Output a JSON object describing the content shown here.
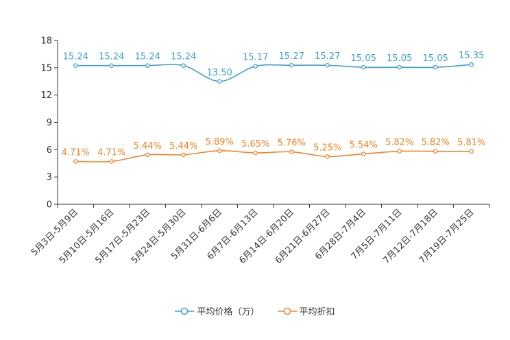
{
  "chart_data": {
    "type": "line",
    "categories": [
      "5月3日-5月9日",
      "5月10日-5月16日",
      "5月17日-5月23日",
      "5月24日-5月30日",
      "5月31日-6月6日",
      "6月7日-6月13日",
      "6月14日-6月20日",
      "6月21日-6月27日",
      "6月28日-7月4日",
      "7月5日-7月11日",
      "7月12日-7月18日",
      "7月19日-7月25日"
    ],
    "series": [
      {
        "name": "平均价格（万）",
        "color": "#3ba0d3",
        "values": [
          15.24,
          15.24,
          15.24,
          15.24,
          13.5,
          15.17,
          15.27,
          15.27,
          15.05,
          15.05,
          15.05,
          15.35
        ],
        "labels": [
          "15.24",
          "15.24",
          "15.24",
          "15.24",
          "13.50",
          "15.17",
          "15.27",
          "15.27",
          "15.05",
          "15.05",
          "15.05",
          "15.35"
        ]
      },
      {
        "name": "平均折扣",
        "color": "#f58220",
        "values": [
          4.71,
          4.71,
          5.44,
          5.44,
          5.89,
          5.65,
          5.76,
          5.25,
          5.54,
          5.82,
          5.82,
          5.81
        ],
        "labels": [
          "4.71%",
          "4.71%",
          "5.44%",
          "5.44%",
          "5.89%",
          "5.65%",
          "5.76%",
          "5.25%",
          "5.54%",
          "5.82%",
          "5.82%",
          "5.81%"
        ]
      }
    ],
    "yticks": [
      "0",
      "3",
      "6",
      "9",
      "12",
      "15",
      "18"
    ],
    "ylim": [
      0,
      18
    ],
    "legend_position": "bottom-center",
    "title": "",
    "xlabel": "",
    "ylabel": ""
  }
}
